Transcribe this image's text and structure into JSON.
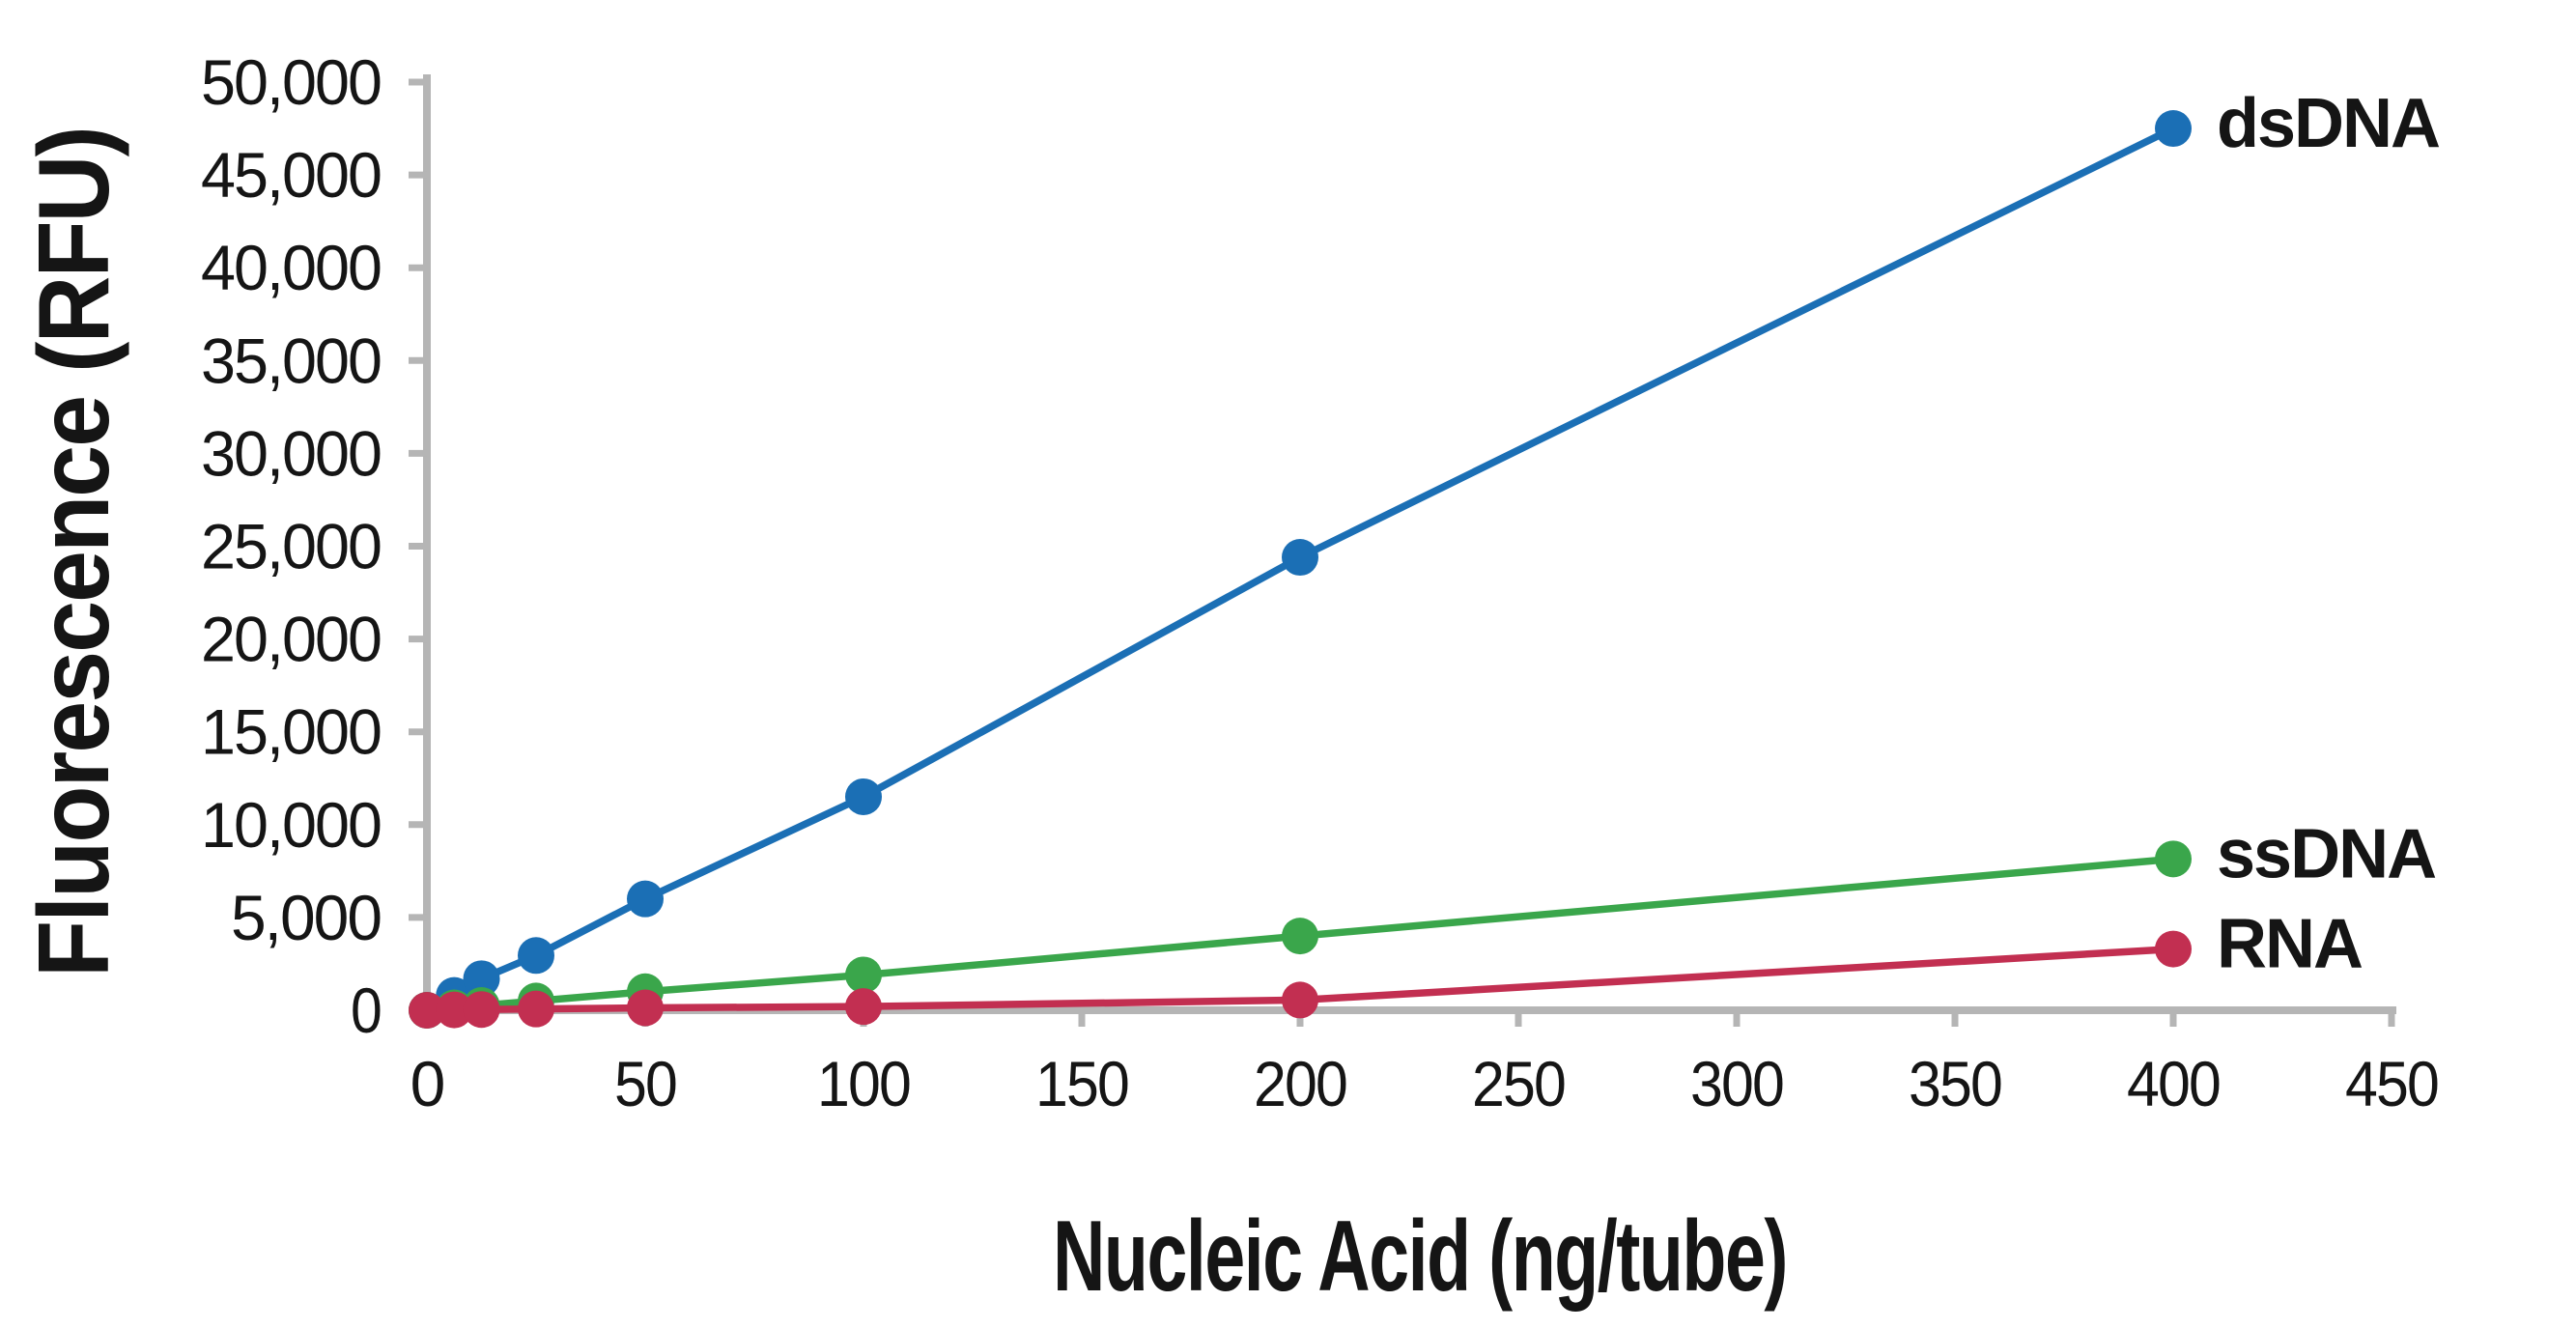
{
  "chart_data": {
    "type": "line",
    "title": "",
    "xlabel": "Nucleic Acid (ng/tube)",
    "ylabel": "Fluorescence (RFU)",
    "x": [
      0,
      6.25,
      12.5,
      25,
      50,
      100,
      200,
      400
    ],
    "series": [
      {
        "name": "dsDNA",
        "color": "#1b6fb5",
        "values": [
          0,
          800,
          1700,
          2950,
          6000,
          11500,
          24400,
          47500
        ]
      },
      {
        "name": "ssDNA",
        "color": "#3aa64b",
        "values": [
          0,
          130,
          260,
          500,
          1000,
          1900,
          4000,
          8150
        ]
      },
      {
        "name": "RNA",
        "color": "#c22f51",
        "values": [
          0,
          20,
          40,
          70,
          130,
          200,
          550,
          3300
        ]
      }
    ],
    "x_ticks": [
      0,
      50,
      100,
      150,
      200,
      250,
      300,
      350,
      400,
      450
    ],
    "y_ticks": [
      0,
      5000,
      10000,
      15000,
      20000,
      25000,
      30000,
      35000,
      40000,
      45000,
      50000
    ],
    "xlim": [
      0,
      450
    ],
    "ylim": [
      0,
      50000
    ],
    "grid": false,
    "legend_position": "inline-right-of-last-point",
    "axis_color": "#b5b5b5",
    "text_color": "#151515",
    "marker": "circle",
    "y_tick_format": "thousands-comma"
  }
}
